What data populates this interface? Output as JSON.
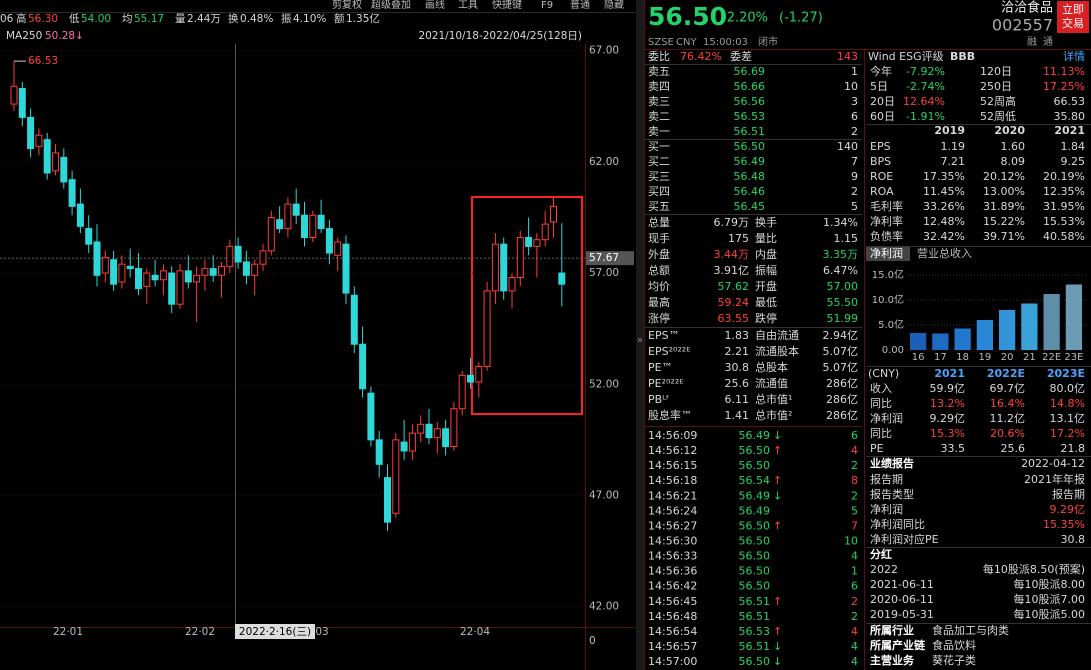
{
  "toolbar": [
    "剪复权",
    "超级叠加",
    "画线",
    "工具",
    "快捷键",
    "F9",
    "普通",
    "隐藏"
  ],
  "quote_bar_lead": "06",
  "quote_bar": [
    {
      "label": "高",
      "value": "56.30",
      "color": "#ff4040"
    },
    {
      "label": "低",
      "value": "54.00",
      "color": "#22d468"
    },
    {
      "label": "均",
      "value": "55.17",
      "color": "#22d468"
    },
    {
      "label": "量",
      "value": "2.44万",
      "color": "#d8d8d8"
    },
    {
      "label": "换",
      "value": "0.48%",
      "color": "#d8d8d8"
    },
    {
      "label": "振",
      "value": "4.10%",
      "color": "#d8d8d8"
    },
    {
      "label": "额",
      "value": "1.35亿",
      "color": "#d8d8d8"
    }
  ],
  "chart_data": [
    {
      "type": "candlestick",
      "ma_label": "MA250",
      "ma_value": "50.28↓",
      "range_label": "2021/10/18-2022/04/25(128日)",
      "max_label": "66.53",
      "up_color": "#ff3c3c",
      "down_color": "#2fd8d8",
      "ylim": [
        41.4,
        67.3
      ],
      "yticks": [
        {
          "value": 67,
          "label": "67.00"
        },
        {
          "value": 62,
          "label": "62.00"
        },
        {
          "value": 57,
          "label": "57.00"
        },
        {
          "value": 52,
          "label": "52.00"
        },
        {
          "value": 47,
          "label": "47.00"
        },
        {
          "value": 42,
          "label": "42.00"
        }
      ],
      "price_line": {
        "value": 57.67,
        "label": "57.67"
      },
      "x_labels": [
        "22·01",
        "22·02",
        "03",
        "22·04"
      ],
      "cursor_label": "2022·2·16(三)",
      "volume_yticks": [
        0
      ],
      "open": [
        64.6,
        65.3,
        64.0,
        62.7,
        63.0,
        61.6,
        62.2,
        61.2,
        60.1,
        59.0,
        58.4,
        57.0,
        57.6,
        56.6,
        57.3,
        57.2,
        56.4,
        56.9,
        56.7,
        57.0,
        55.6,
        57.1,
        56.6,
        56.9,
        57.2,
        56.9,
        57.3,
        58.2,
        57.5,
        56.9,
        57.4,
        58.0,
        59.4,
        59.0,
        60.1,
        59.6,
        58.6,
        59.6,
        59.0,
        57.8,
        58.3,
        56.0,
        53.8,
        51.6,
        49.5,
        47.8,
        46.2,
        49.4,
        49.0,
        49.8,
        50.2,
        49.6,
        50.0,
        49.2,
        50.9,
        52.4,
        52.1,
        52.8,
        56.2,
        58.3,
        56.2,
        56.8,
        58.6,
        58.2,
        58.5,
        59.3,
        57.0
      ],
      "high": [
        66.53,
        65.6,
        64.4,
        63.5,
        63.3,
        62.8,
        62.6,
        61.6,
        60.8,
        59.6,
        59.2,
        58.0,
        58.0,
        57.8,
        58.1,
        57.9,
        57.2,
        57.6,
        57.4,
        57.3,
        57.4,
        57.8,
        57.3,
        57.6,
        57.8,
        57.5,
        58.5,
        58.6,
        58.0,
        57.6,
        58.3,
        59.8,
        60.0,
        60.4,
        60.8,
        60.2,
        59.8,
        60.3,
        59.4,
        58.6,
        58.7,
        56.4,
        54.6,
        51.9,
        49.9,
        48.4,
        49.8,
        50.4,
        50.2,
        50.6,
        50.9,
        50.3,
        50.4,
        51.2,
        52.6,
        53.2,
        53.0,
        56.6,
        58.8,
        58.6,
        57.0,
        58.9,
        59.5,
        58.8,
        59.8,
        60.4,
        59.24
      ],
      "low": [
        64.3,
        63.6,
        62.2,
        62.3,
        61.2,
        61.4,
        60.8,
        59.6,
        58.8,
        57.9,
        56.4,
        56.6,
        56.2,
        56.3,
        56.8,
        56.0,
        55.6,
        56.4,
        56.0,
        55.2,
        55.4,
        56.3,
        54.8,
        56.2,
        56.6,
        55.9,
        57.0,
        57.2,
        56.5,
        56.0,
        57.1,
        57.8,
        58.8,
        58.6,
        59.2,
        58.2,
        58.4,
        58.8,
        57.4,
        57.1,
        55.6,
        53.4,
        51.4,
        49.2,
        47.8,
        45.4,
        46.0,
        48.6,
        48.6,
        49.4,
        49.3,
        48.9,
        48.8,
        49.0,
        50.6,
        51.8,
        51.4,
        52.6,
        55.6,
        55.8,
        55.4,
        56.4,
        57.8,
        56.8,
        58.2,
        58.6,
        55.5
      ],
      "close": [
        65.4,
        64.0,
        62.6,
        63.2,
        61.5,
        62.4,
        61.1,
        60.0,
        59.1,
        58.3,
        56.9,
        57.7,
        56.5,
        57.4,
        57.2,
        56.3,
        57.0,
        56.7,
        57.1,
        55.6,
        57.1,
        56.6,
        56.9,
        57.2,
        56.9,
        57.3,
        58.2,
        57.5,
        56.9,
        57.4,
        58.0,
        59.5,
        59.0,
        60.1,
        59.6,
        58.6,
        59.6,
        59.0,
        57.9,
        58.4,
        56.1,
        53.8,
        51.8,
        49.5,
        48.4,
        45.8,
        49.5,
        49.0,
        49.8,
        50.2,
        49.6,
        50.0,
        49.2,
        50.9,
        52.4,
        52.1,
        52.8,
        56.2,
        58.3,
        56.2,
        56.8,
        58.6,
        58.2,
        58.5,
        59.2,
        60.0,
        56.5
      ]
    },
    {
      "type": "bar",
      "categories": [
        "16",
        "17",
        "18",
        "19",
        "20",
        "21",
        "22E",
        "23E"
      ],
      "values": [
        3.4,
        3.3,
        4.3,
        6.0,
        8.0,
        9.3,
        11.2,
        13.1
      ],
      "colors": [
        "#1d5fb8",
        "#1f6bc4",
        "#2278cf",
        "#2a86d6",
        "#3394d8",
        "#3aa2d9",
        "#5f8fa8",
        "#6c9cb4"
      ],
      "ylim": [
        0,
        16.4
      ],
      "yticks": [
        {
          "value": 0,
          "label": "0.00"
        },
        {
          "value": 5,
          "label": "5.0亿"
        },
        {
          "value": 10,
          "label": "10.0亿"
        },
        {
          "value": 15,
          "label": "15.0亿"
        }
      ]
    }
  ],
  "header": {
    "price": "56.50",
    "change_pct": "-2.20%",
    "change": "(-1.27)",
    "name": "洽洽食品",
    "code": "002557",
    "exchange": "SZSE",
    "currency": "CNY",
    "time": "15:00:03",
    "status": "闭市",
    "trade_button": [
      "立即",
      "交易"
    ],
    "icons": [
      "融",
      "通"
    ]
  },
  "order_book": {
    "ratio_label": "委比",
    "ratio": "76.42%",
    "diff_label": "委差",
    "diff": "143",
    "asks": [
      {
        "label": "卖五",
        "price": "56.69",
        "volume": "1"
      },
      {
        "label": "卖四",
        "price": "56.66",
        "volume": "10"
      },
      {
        "label": "卖三",
        "price": "56.56",
        "volume": "3"
      },
      {
        "label": "卖二",
        "price": "56.53",
        "volume": "6"
      },
      {
        "label": "卖一",
        "price": "56.51",
        "volume": "2"
      }
    ],
    "bids": [
      {
        "label": "买一",
        "price": "56.50",
        "volume": "140"
      },
      {
        "label": "买二",
        "price": "56.49",
        "volume": "7"
      },
      {
        "label": "买三",
        "price": "56.48",
        "volume": "9"
      },
      {
        "label": "买四",
        "price": "56.46",
        "volume": "2"
      },
      {
        "label": "买五",
        "price": "56.45",
        "volume": "5"
      }
    ]
  },
  "stats": [
    [
      {
        "label": "总量",
        "value": "6.79万",
        "color": "#d8d8d8"
      },
      {
        "label": "换手",
        "value": "1.34%",
        "color": "#d8d8d8"
      }
    ],
    [
      {
        "label": "现手",
        "value": "175",
        "color": "#d8d8d8"
      },
      {
        "label": "量比",
        "value": "1.15",
        "color": "#d8d8d8"
      }
    ],
    [
      {
        "label": "外盘",
        "value": "3.44万",
        "color": "#ff4040"
      },
      {
        "label": "内盘",
        "value": "3.35万",
        "color": "#22d468"
      }
    ],
    [
      {
        "label": "总额",
        "value": "3.91亿",
        "color": "#d8d8d8"
      },
      {
        "label": "振幅",
        "value": "6.47%",
        "color": "#d8d8d8"
      }
    ],
    [
      {
        "label": "均价",
        "value": "57.62",
        "color": "#22d468"
      },
      {
        "label": "开盘",
        "value": "57.00",
        "color": "#22d468"
      }
    ],
    [
      {
        "label": "最高",
        "value": "59.24",
        "color": "#ff4040"
      },
      {
        "label": "最低",
        "value": "55.50",
        "color": "#22d468"
      }
    ],
    [
      {
        "label": "涨停",
        "value": "63.55",
        "color": "#ff4040"
      },
      {
        "label": "跌停",
        "value": "51.99",
        "color": "#22d468"
      }
    ]
  ],
  "valuation": [
    [
      {
        "label": "EPS™",
        "value": "1.83",
        "color": "#d8d8d8"
      },
      {
        "label": "自由流通",
        "value": "2.94亿",
        "color": "#d8d8d8"
      }
    ],
    [
      {
        "label": "EPS²⁰²²ᴱ",
        "value": "2.21",
        "color": "#d8d8d8"
      },
      {
        "label": "流通股本",
        "value": "5.07亿",
        "color": "#d8d8d8"
      }
    ],
    [
      {
        "label": "PE™",
        "value": "30.8",
        "color": "#d8d8d8"
      },
      {
        "label": "总股本",
        "value": "5.07亿",
        "color": "#d8d8d8"
      }
    ],
    [
      {
        "label": "PE²⁰²²ᴱ",
        "value": "25.6",
        "color": "#d8d8d8"
      },
      {
        "label": "流通值",
        "value": "286亿",
        "color": "#d8d8d8"
      }
    ],
    [
      {
        "label": "PBᴸᶠ",
        "value": "6.11",
        "color": "#d8d8d8"
      },
      {
        "label": "总市值¹",
        "value": "286亿",
        "color": "#d8d8d8"
      }
    ],
    [
      {
        "label": "股息率™",
        "value": "1.41",
        "color": "#d8d8d8"
      },
      {
        "label": "总市值²",
        "value": "286亿",
        "color": "#d8d8d8"
      }
    ]
  ],
  "ticks": [
    {
      "time": "14:56:09",
      "price": "56.49",
      "arrow": "↓",
      "volume": "6",
      "color": "#22d468"
    },
    {
      "time": "14:56:12",
      "price": "56.50",
      "arrow": "↑",
      "volume": "4",
      "color": "#ff4040"
    },
    {
      "time": "14:56:15",
      "price": "56.50",
      "volume": "2",
      "color": "#22d468"
    },
    {
      "time": "14:56:18",
      "price": "56.54",
      "arrow": "↑",
      "volume": "8",
      "color": "#ff4040"
    },
    {
      "time": "14:56:21",
      "price": "56.49",
      "arrow": "↓",
      "volume": "2",
      "color": "#22d468"
    },
    {
      "time": "14:56:24",
      "price": "56.49",
      "volume": "5",
      "color": "#22d468"
    },
    {
      "time": "14:56:27",
      "price": "56.50",
      "arrow": "↑",
      "volume": "7",
      "color": "#ff4040"
    },
    {
      "time": "14:56:30",
      "price": "56.50",
      "volume": "10",
      "color": "#22d468"
    },
    {
      "time": "14:56:33",
      "price": "56.50",
      "volume": "4",
      "color": "#22d468"
    },
    {
      "time": "14:56:36",
      "price": "56.50",
      "volume": "1",
      "color": "#22d468"
    },
    {
      "time": "14:56:42",
      "price": "56.50",
      "volume": "6",
      "color": "#22d468"
    },
    {
      "time": "14:56:45",
      "price": "56.51",
      "arrow": "↑",
      "volume": "2",
      "color": "#ff4040"
    },
    {
      "time": "14:56:48",
      "price": "56.51",
      "volume": "2",
      "color": "#22d468"
    },
    {
      "time": "14:56:54",
      "price": "56.53",
      "arrow": "↑",
      "volume": "4",
      "color": "#ff4040"
    },
    {
      "time": "14:56:57",
      "price": "56.51",
      "arrow": "↓",
      "volume": "4",
      "color": "#22d468"
    },
    {
      "time": "14:57:00",
      "price": "56.50",
      "arrow": "↓",
      "volume": "4",
      "color": "#22d468"
    }
  ],
  "esg": {
    "label": "Wind ESG评级",
    "rating": "BBB",
    "detail": "详情"
  },
  "performance": [
    [
      {
        "label": "今年",
        "value": "-7.92%",
        "color": "#22d468"
      },
      {
        "label": "120日",
        "value": "11.13%",
        "color": "#ff4040"
      }
    ],
    [
      {
        "label": "5日",
        "value": "-2.74%",
        "color": "#22d468"
      },
      {
        "label": "250日",
        "value": "17.25%",
        "color": "#ff4040"
      }
    ],
    [
      {
        "label": "20日",
        "value": "12.64%",
        "color": "#ff4040"
      },
      {
        "label": "52周高",
        "value": "66.53",
        "color": "#d8d8d8"
      }
    ],
    [
      {
        "label": "60日",
        "value": "-1.91%",
        "color": "#22d468"
      },
      {
        "label": "52周低",
        "value": "35.80",
        "color": "#d8d8d8"
      }
    ]
  ],
  "financials": {
    "years": [
      "2019",
      "2020",
      "2021"
    ],
    "rows": [
      {
        "label": "EPS",
        "values": [
          "1.19",
          "1.60",
          "1.84"
        ]
      },
      {
        "label": "BPS",
        "values": [
          "7.21",
          "8.09",
          "9.25"
        ]
      },
      {
        "label": "ROE",
        "values": [
          "17.35%",
          "20.12%",
          "20.19%"
        ]
      },
      {
        "label": "ROA",
        "values": [
          "11.45%",
          "13.00%",
          "12.35%"
        ]
      },
      {
        "label": "毛利率",
        "values": [
          "33.26%",
          "31.89%",
          "31.95%"
        ]
      },
      {
        "label": "净利率",
        "values": [
          "12.48%",
          "15.22%",
          "15.53%"
        ]
      },
      {
        "label": "负债率",
        "values": [
          "32.42%",
          "39.71%",
          "40.58%"
        ]
      }
    ]
  },
  "profit_tabs": [
    "净利润",
    "营业总收入"
  ],
  "forecast": {
    "unit": "(CNY)",
    "years": [
      "2021",
      "2022E",
      "2023E"
    ],
    "rows": [
      {
        "label": "收入",
        "values": [
          "59.9亿",
          "69.7亿",
          "80.0亿"
        ],
        "color": "#d8d8d8"
      },
      {
        "label": "同比",
        "values": [
          "13.2%",
          "16.4%",
          "14.8%"
        ],
        "color": "#ff4040"
      },
      {
        "label": "净利润",
        "values": [
          "9.29亿",
          "11.2亿",
          "13.1亿"
        ],
        "color": "#d8d8d8"
      },
      {
        "label": "同比",
        "values": [
          "15.3%",
          "20.6%",
          "17.2%"
        ],
        "color": "#ff4040"
      },
      {
        "label": "PE",
        "values": [
          "33.5",
          "25.6",
          "21.8"
        ],
        "color": "#d8d8d8"
      }
    ]
  },
  "report": {
    "title": "业绩报告",
    "date": "2022-04-12",
    "rows": [
      {
        "label": "报告期",
        "value": "2021年年报",
        "color": "#d8d8d8"
      },
      {
        "label": "报告类型",
        "value": "报告期",
        "color": "#d8d8d8"
      },
      {
        "label": "净利润",
        "value": "9.29亿",
        "color": "#ff4040"
      },
      {
        "label": "净利润同比",
        "value": "15.35%",
        "color": "#ff4040"
      },
      {
        "label": "净利润对应PE",
        "value": "30.8",
        "color": "#d8d8d8"
      }
    ]
  },
  "dividend": {
    "title": "分红",
    "rows": [
      {
        "date": "2022",
        "value": "每10股派8.50(预案)"
      },
      {
        "date": "2021-06-11",
        "value": "每10股派8.00"
      },
      {
        "date": "2020-06-11",
        "value": "每10股派7.00"
      },
      {
        "date": "2019-05-31",
        "value": "每10股派5.00"
      }
    ]
  },
  "profile": [
    {
      "label": "所属行业",
      "value": "食品加工与肉类"
    },
    {
      "label": "所属产业链",
      "value": "食品饮料"
    },
    {
      "label": "主营业务",
      "value": "葵花子类"
    }
  ]
}
